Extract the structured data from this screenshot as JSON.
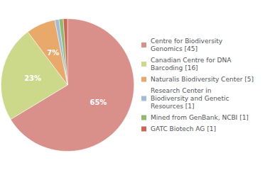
{
  "chart_data": {
    "type": "pie",
    "categories": [
      "Centre for Biodiversity\nGenomics [45]",
      "Canadian Centre for DNA\nBarcoding [16]",
      "Naturalis Biodiversity Center [5]",
      "Research Center in\nBiodiversity and Genetic\nResources [1]",
      "Mined from GenBank, NCBI [1]",
      "GATC Biotech AG [1]"
    ],
    "values": [
      65,
      23,
      7,
      1,
      1,
      1
    ],
    "value_labels": [
      "65%",
      "23%",
      "7%",
      null,
      null,
      null
    ],
    "colors": [
      "#d9908a",
      "#ccd98a",
      "#e8a96a",
      "#a0bcd9",
      "#8fbc6a",
      "#cc6655"
    ],
    "data_labels": true,
    "legend": "right"
  }
}
